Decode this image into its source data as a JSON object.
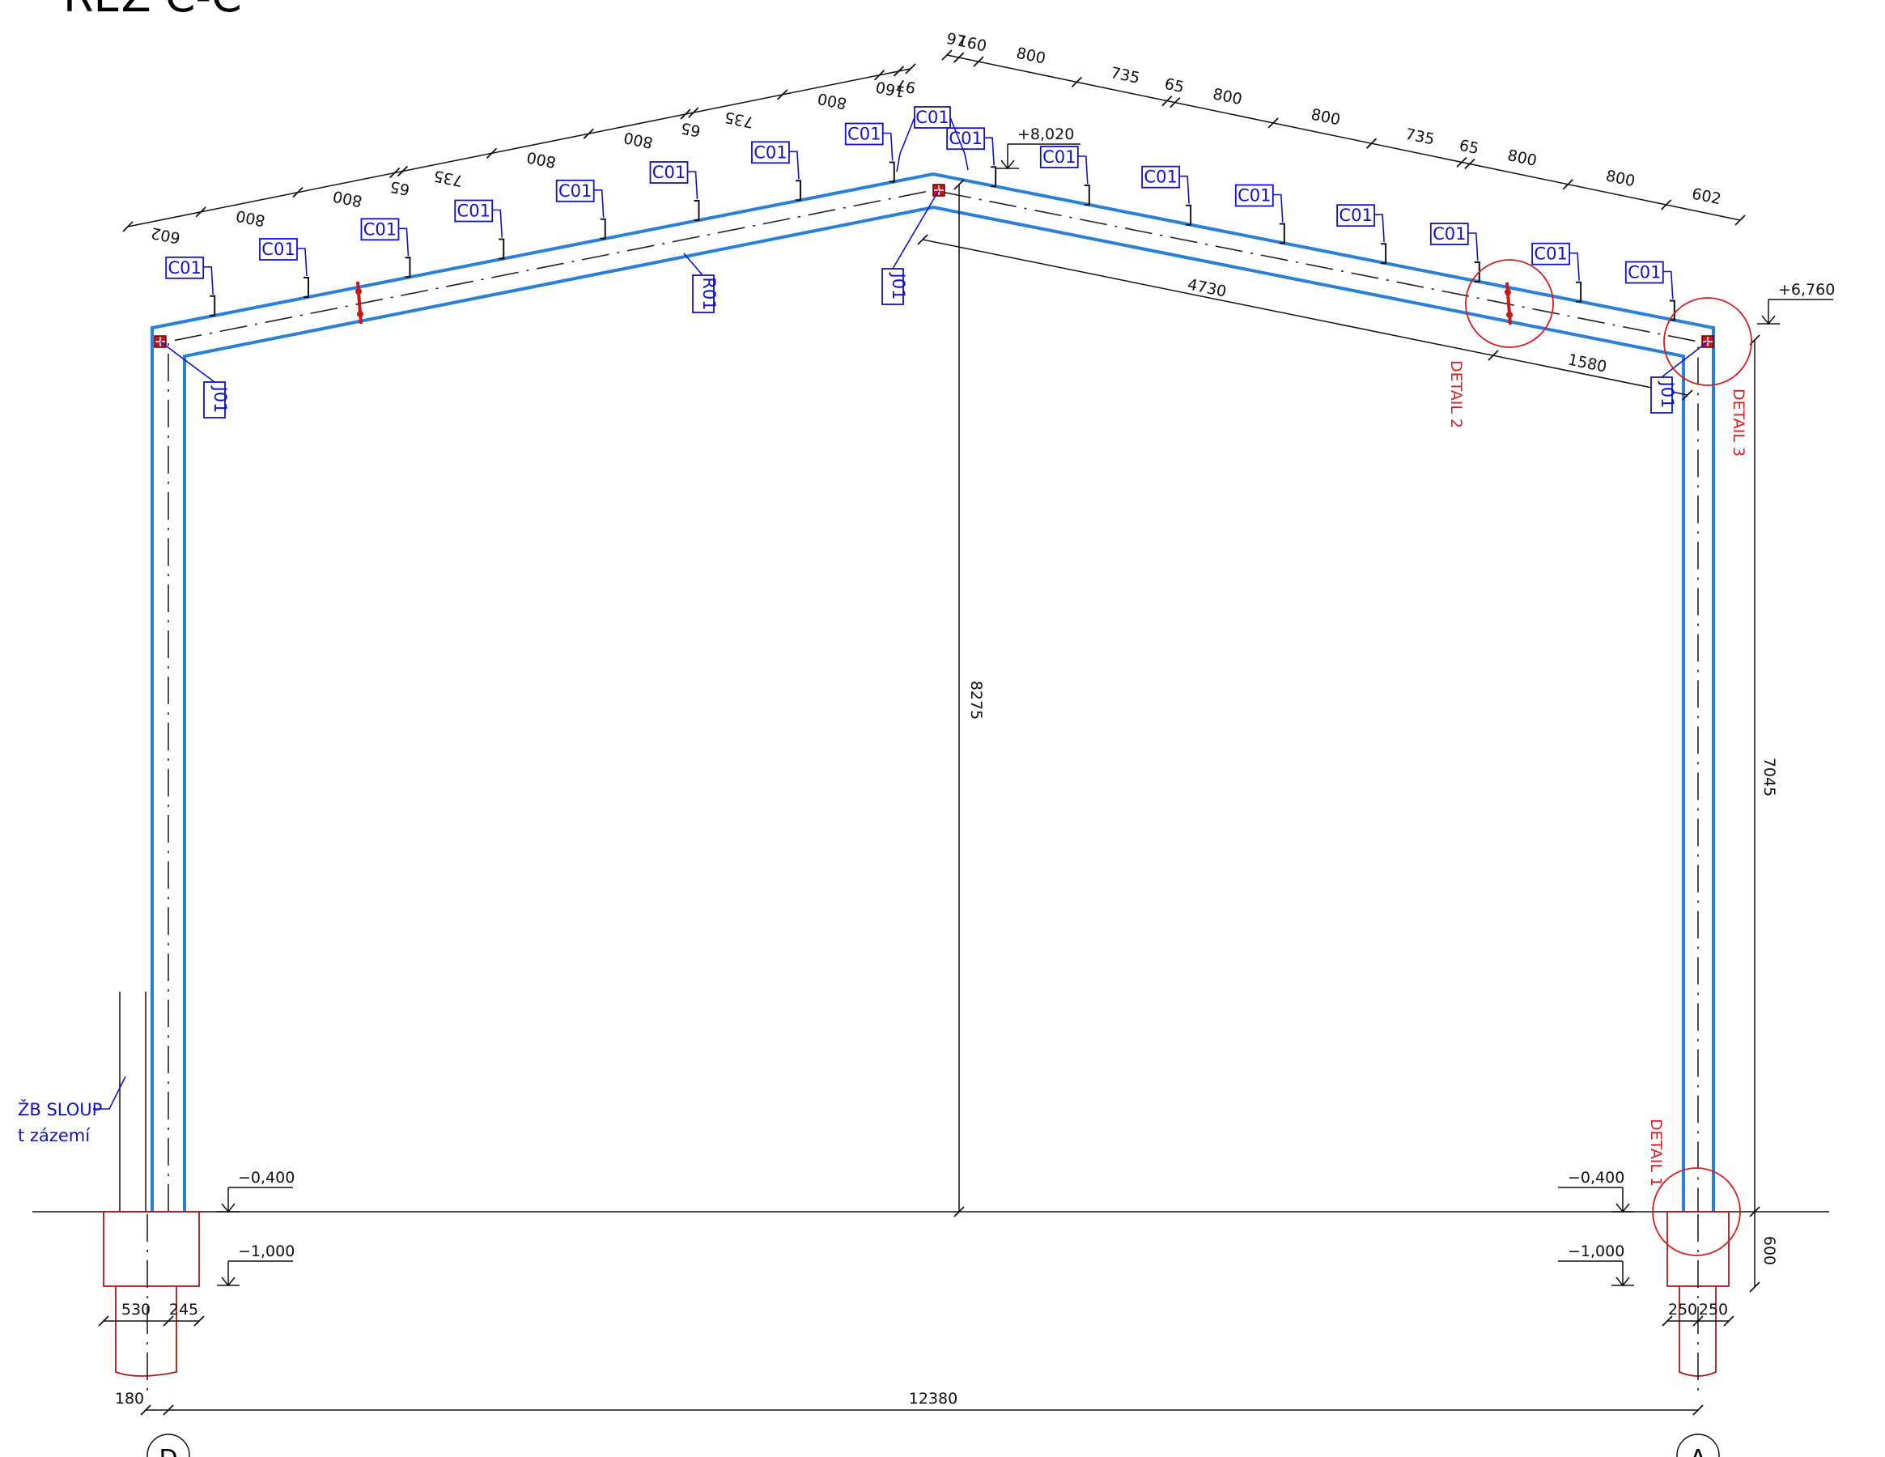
{
  "title": "ŘEZ C-C",
  "member_labels": {
    "purlin": "C01",
    "rafter": "R01",
    "joint": "J01"
  },
  "left_slope_dims": [
    "602",
    "800",
    "800",
    "65",
    "735",
    "800",
    "800",
    "65",
    "735",
    "800",
    "160",
    "97"
  ],
  "right_slope_dims": [
    "97",
    "160",
    "800",
    "735",
    "65",
    "800",
    "800",
    "735",
    "65",
    "800",
    "800",
    "602"
  ],
  "rafter_length_dims": [
    "4730",
    "1580"
  ],
  "height_dims": {
    "ridge_height": "8275",
    "eave_height": "7045",
    "foundation_depth": "600"
  },
  "levels": {
    "ridge": "+8,020",
    "eave": "+6,760",
    "top_footing": "−0,400",
    "bottom_footing": "−1,000"
  },
  "footing_dims": {
    "left": [
      "530",
      "245"
    ],
    "right": [
      "250",
      "250"
    ],
    "offset": "180",
    "span": "12380"
  },
  "axes": {
    "left": "D",
    "right": "A"
  },
  "details": [
    "DETAIL 1",
    "DETAIL 2",
    "DETAIL 3"
  ],
  "note": {
    "line1": "ŽB SLOUP",
    "line2": "t zázemí"
  },
  "colors": {
    "frame": "#2a7fd6",
    "tags": "#1010d0",
    "details": "#d42020",
    "foundation": "#b01818"
  }
}
